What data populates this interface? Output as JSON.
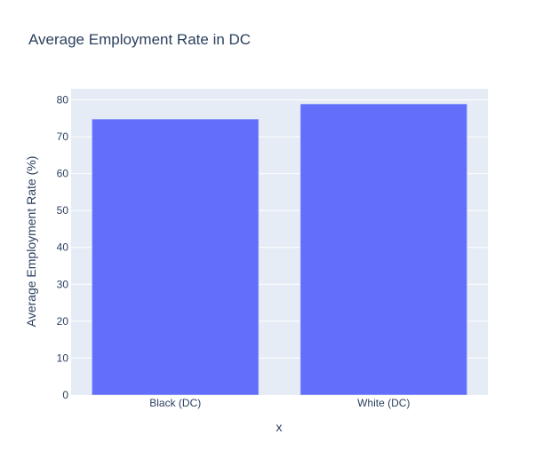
{
  "chart_data": {
    "type": "bar",
    "title": "Average Employment Rate in DC",
    "xlabel": "x",
    "ylabel": "Average Employment Rate (%)",
    "categories": [
      "Black (DC)",
      "White (DC)"
    ],
    "values": [
      74.8,
      78.9
    ],
    "ylim": [
      0,
      83
    ],
    "yticks": [
      0,
      10,
      20,
      30,
      40,
      50,
      60,
      70,
      80
    ],
    "grid": true,
    "legend": "none"
  },
  "colors": {
    "bar": "#636efa",
    "plot_background": "#e5ecf6",
    "gridline": "#ffffff",
    "text": "#2a3f5f"
  }
}
